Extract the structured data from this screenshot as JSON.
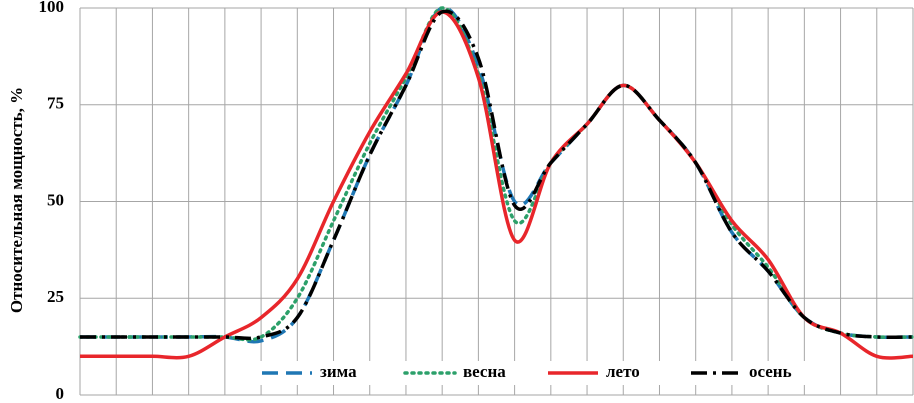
{
  "chart_data": {
    "type": "line",
    "y_label": "Относительная мощность, %",
    "categories": [
      null,
      null,
      null,
      null,
      null,
      null,
      null,
      null,
      null,
      null,
      null,
      null,
      null,
      null,
      null,
      null,
      null,
      null,
      null,
      null,
      null,
      null,
      null,
      null
    ],
    "series": [
      {
        "name": "зима",
        "color": "#1f77b4",
        "dash": "16 8",
        "values": [
          15,
          15,
          15,
          15,
          15,
          14,
          20,
          40,
          62,
          80,
          100,
          85,
          50,
          60,
          70,
          80,
          71,
          60,
          42,
          32,
          20,
          16,
          15,
          15
        ]
      },
      {
        "name": "весна",
        "color": "#2ca06a",
        "dash": "2 5",
        "values": [
          15,
          15,
          15,
          15,
          15,
          15,
          25,
          45,
          65,
          82,
          100,
          83,
          45,
          60,
          70,
          80,
          71,
          60,
          44,
          33,
          20,
          16,
          15,
          15
        ]
      },
      {
        "name": "лето",
        "color": "#e8262b",
        "dash": "",
        "values": [
          10,
          10,
          10,
          10,
          15,
          20,
          30,
          50,
          68,
          83,
          99,
          82,
          40,
          60,
          70,
          80,
          71,
          60,
          45,
          35,
          20,
          16,
          10,
          10
        ]
      },
      {
        "name": "осень",
        "color": "#000000",
        "dash": "16 6 3 6",
        "values": [
          15,
          15,
          15,
          15,
          15,
          15,
          20,
          40,
          62,
          80,
          99,
          87,
          49,
          60,
          70,
          80,
          71,
          60,
          42,
          32,
          20,
          16,
          15,
          15
        ]
      }
    ],
    "ylim": [
      0,
      100
    ],
    "yticks": [
      0,
      25,
      50,
      75,
      100
    ],
    "grid": true,
    "legend": "bottom"
  }
}
